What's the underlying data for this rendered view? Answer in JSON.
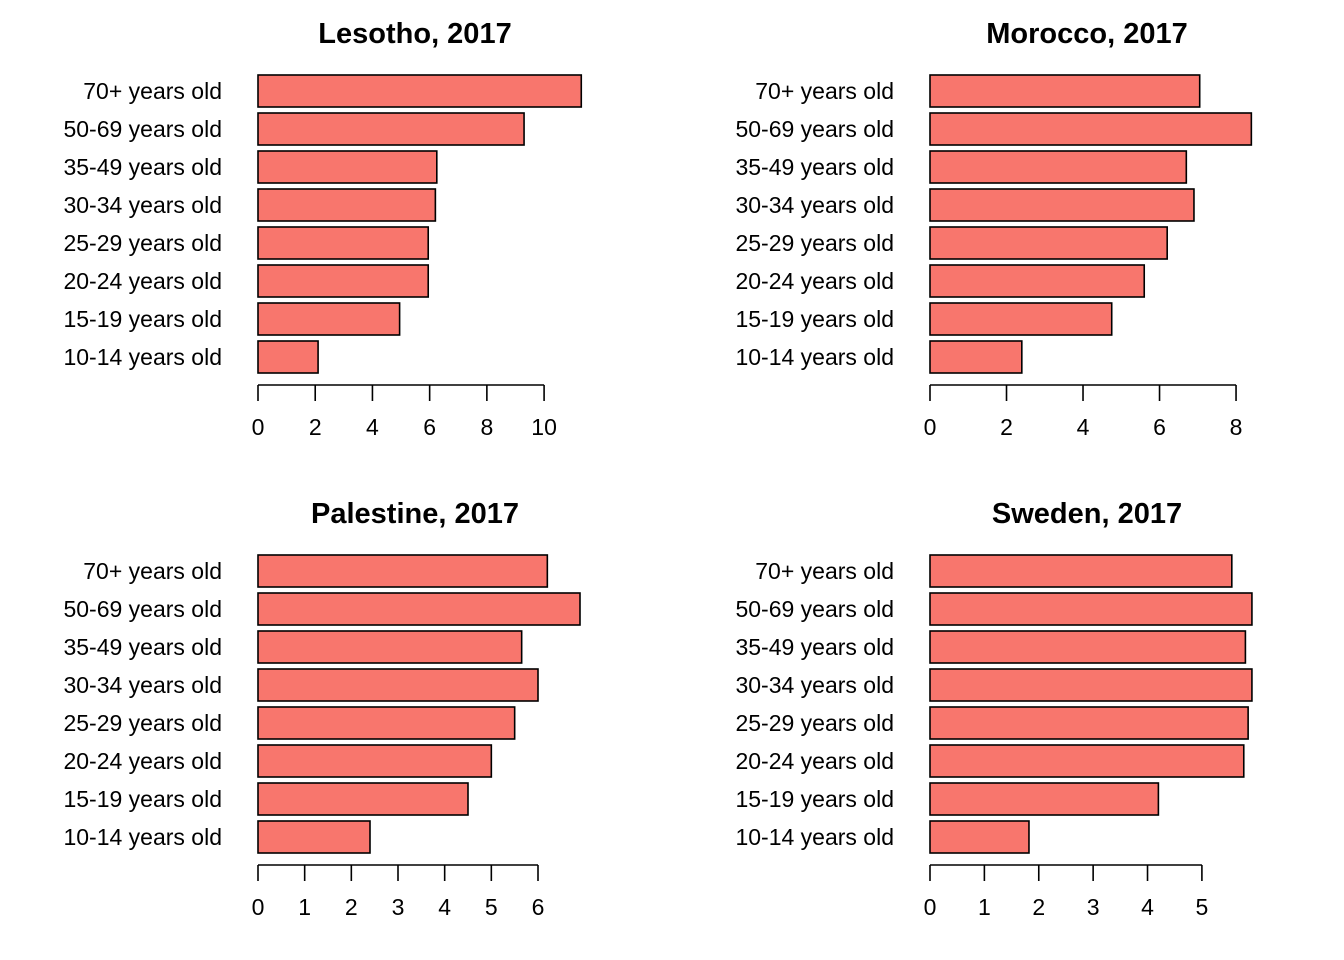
{
  "chart_data": [
    {
      "type": "bar",
      "orientation": "horizontal",
      "title": "Lesotho, 2017",
      "categories": [
        "10-14 years old",
        "15-19 years old",
        "20-24 years old",
        "25-29 years old",
        "30-34 years old",
        "35-49 years old",
        "50-69 years old",
        "70+ years old"
      ],
      "values": [
        2.1,
        4.95,
        5.95,
        5.95,
        6.2,
        6.25,
        9.3,
        11.3
      ],
      "ticks": [
        0,
        2,
        4,
        6,
        8,
        10
      ],
      "xlim": [
        0,
        11.5
      ],
      "grid": false,
      "color": "#f8766d"
    },
    {
      "type": "bar",
      "orientation": "horizontal",
      "title": "Morocco, 2017",
      "categories": [
        "10-14 years old",
        "15-19 years old",
        "20-24 years old",
        "25-29 years old",
        "30-34 years old",
        "35-49 years old",
        "50-69 years old",
        "70+ years old"
      ],
      "values": [
        2.4,
        4.75,
        5.6,
        6.2,
        6.9,
        6.7,
        8.4,
        7.05
      ],
      "ticks": [
        0,
        2,
        4,
        6,
        8
      ],
      "xlim": [
        0,
        8.6
      ],
      "grid": false,
      "color": "#f8766d"
    },
    {
      "type": "bar",
      "orientation": "horizontal",
      "title": "Palestine, 2017",
      "categories": [
        "10-14 years old",
        "15-19 years old",
        "20-24 years old",
        "25-29 years old",
        "30-34 years old",
        "35-49 years old",
        "50-69 years old",
        "70+ years old"
      ],
      "values": [
        2.4,
        4.5,
        5.0,
        5.5,
        6.0,
        5.65,
        6.9,
        6.2
      ],
      "ticks": [
        0,
        1,
        2,
        3,
        4,
        5,
        6
      ],
      "xlim": [
        0,
        7.05
      ],
      "grid": false,
      "color": "#f8766d"
    },
    {
      "type": "bar",
      "orientation": "horizontal",
      "title": "Sweden, 2017",
      "categories": [
        "10-14 years old",
        "15-19 years old",
        "20-24 years old",
        "25-29 years old",
        "30-34 years old",
        "35-49 years old",
        "50-69 years old",
        "70+ years old"
      ],
      "values": [
        1.82,
        4.2,
        5.77,
        5.85,
        5.92,
        5.8,
        5.92,
        5.55
      ],
      "ticks": [
        0,
        1,
        2,
        3,
        4,
        5
      ],
      "xlim": [
        0,
        6.05
      ],
      "grid": false,
      "color": "#f8766d"
    }
  ]
}
